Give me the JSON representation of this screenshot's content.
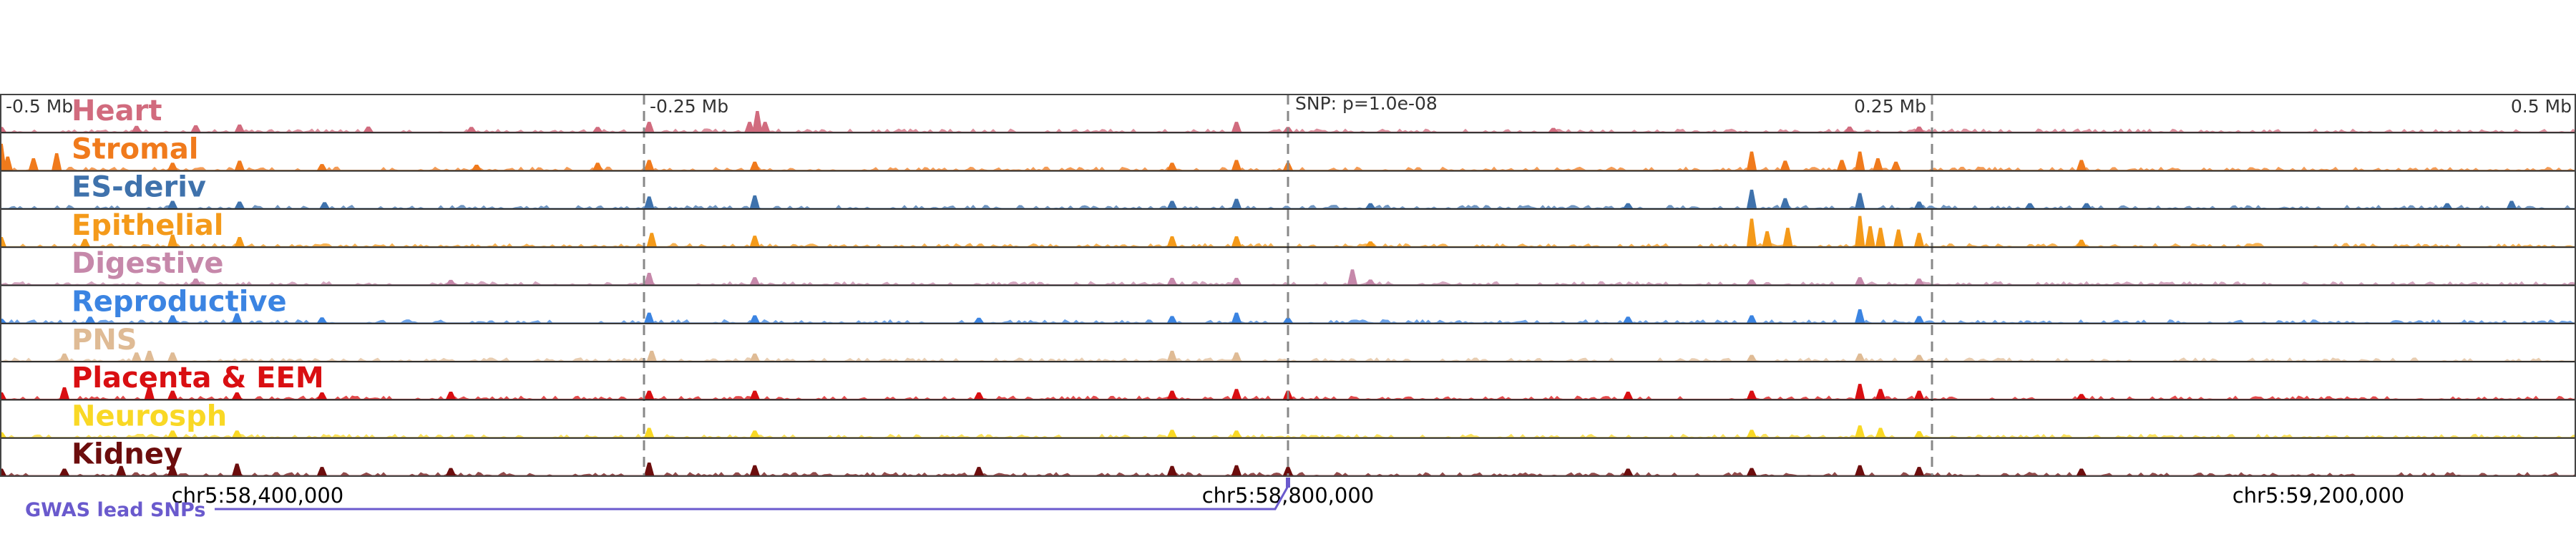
{
  "chart_data": {
    "type": "area",
    "title": "",
    "xlabel": "",
    "ylabel": "",
    "chromosome": "chr5",
    "xlim": [
      58300000,
      59300000
    ],
    "snp_position": 58800000,
    "snp_label": "SNP: p=1.0e-08",
    "scale_ticks": [
      {
        "pos": 58300000,
        "label": "-0.5 Mb"
      },
      {
        "pos": 58550000,
        "label": "-0.25 Mb"
      },
      {
        "pos": 58800000,
        "label": ""
      },
      {
        "pos": 59050000,
        "label": "0.25 Mb"
      },
      {
        "pos": 59300000,
        "label": "0.5 Mb"
      }
    ],
    "coordinate_ticks": [
      {
        "pos": 58400000,
        "label": "chr5:58,400,000"
      },
      {
        "pos": 58800000,
        "label": "chr5:58,800,000"
      },
      {
        "pos": 59200000,
        "label": "chr5:59,200,000"
      }
    ],
    "gwas_label": "GWAS lead SNPs",
    "gwas_color": "#6a5acd",
    "series": [
      {
        "name": "Heart",
        "color": "#d16b7e",
        "peaks": [
          {
            "x": 58300500,
            "h": 0.15
          },
          {
            "x": 58353000,
            "h": 0.18
          },
          {
            "x": 58376000,
            "h": 0.2
          },
          {
            "x": 58393000,
            "h": 0.22
          },
          {
            "x": 58443000,
            "h": 0.16
          },
          {
            "x": 58483000,
            "h": 0.15
          },
          {
            "x": 58532000,
            "h": 0.15
          },
          {
            "x": 58552000,
            "h": 0.3
          },
          {
            "x": 58591000,
            "h": 0.3
          },
          {
            "x": 58594000,
            "h": 0.62
          },
          {
            "x": 58597000,
            "h": 0.3
          },
          {
            "x": 58780000,
            "h": 0.3
          },
          {
            "x": 58800000,
            "h": 0.15
          },
          {
            "x": 58903000,
            "h": 0.12
          },
          {
            "x": 59018000,
            "h": 0.16
          },
          {
            "x": 59045000,
            "h": 0.16
          }
        ]
      },
      {
        "name": "Stromal",
        "color": "#f07a1c",
        "peaks": [
          {
            "x": 58300500,
            "h": 0.78
          },
          {
            "x": 58303000,
            "h": 0.4
          },
          {
            "x": 58313000,
            "h": 0.35
          },
          {
            "x": 58322000,
            "h": 0.5
          },
          {
            "x": 58367000,
            "h": 0.22
          },
          {
            "x": 58393000,
            "h": 0.28
          },
          {
            "x": 58425000,
            "h": 0.18
          },
          {
            "x": 58485000,
            "h": 0.16
          },
          {
            "x": 58532000,
            "h": 0.22
          },
          {
            "x": 58552000,
            "h": 0.3
          },
          {
            "x": 58593000,
            "h": 0.25
          },
          {
            "x": 58755000,
            "h": 0.22
          },
          {
            "x": 58780000,
            "h": 0.3
          },
          {
            "x": 58800000,
            "h": 0.22
          },
          {
            "x": 58980000,
            "h": 0.55
          },
          {
            "x": 58993000,
            "h": 0.28
          },
          {
            "x": 59015000,
            "h": 0.3
          },
          {
            "x": 59022000,
            "h": 0.55
          },
          {
            "x": 59029000,
            "h": 0.35
          },
          {
            "x": 59036000,
            "h": 0.25
          },
          {
            "x": 59108000,
            "h": 0.3
          }
        ]
      },
      {
        "name": "ES-deriv",
        "color": "#3f72ac",
        "peaks": [
          {
            "x": 58367000,
            "h": 0.22
          },
          {
            "x": 58393000,
            "h": 0.2
          },
          {
            "x": 58426000,
            "h": 0.18
          },
          {
            "x": 58552000,
            "h": 0.35
          },
          {
            "x": 58593000,
            "h": 0.38
          },
          {
            "x": 58755000,
            "h": 0.22
          },
          {
            "x": 58780000,
            "h": 0.28
          },
          {
            "x": 58832000,
            "h": 0.15
          },
          {
            "x": 58932000,
            "h": 0.15
          },
          {
            "x": 58980000,
            "h": 0.55
          },
          {
            "x": 58993000,
            "h": 0.3
          },
          {
            "x": 59022000,
            "h": 0.45
          },
          {
            "x": 59045000,
            "h": 0.2
          },
          {
            "x": 59088000,
            "h": 0.15
          },
          {
            "x": 59110000,
            "h": 0.15
          },
          {
            "x": 59250000,
            "h": 0.15
          },
          {
            "x": 59275000,
            "h": 0.22
          }
        ]
      },
      {
        "name": "Epithelial",
        "color": "#f49a1a",
        "peaks": [
          {
            "x": 58300500,
            "h": 0.28
          },
          {
            "x": 58333000,
            "h": 0.22
          },
          {
            "x": 58367000,
            "h": 0.35
          },
          {
            "x": 58393000,
            "h": 0.28
          },
          {
            "x": 58553000,
            "h": 0.4
          },
          {
            "x": 58593000,
            "h": 0.32
          },
          {
            "x": 58755000,
            "h": 0.3
          },
          {
            "x": 58780000,
            "h": 0.3
          },
          {
            "x": 58832000,
            "h": 0.15
          },
          {
            "x": 58980000,
            "h": 0.82
          },
          {
            "x": 58986000,
            "h": 0.45
          },
          {
            "x": 58994000,
            "h": 0.55
          },
          {
            "x": 59022000,
            "h": 0.9
          },
          {
            "x": 59026000,
            "h": 0.6
          },
          {
            "x": 59030000,
            "h": 0.55
          },
          {
            "x": 59037000,
            "h": 0.5
          },
          {
            "x": 59045000,
            "h": 0.4
          },
          {
            "x": 59108000,
            "h": 0.2
          }
        ]
      },
      {
        "name": "Digestive",
        "color": "#c688aa",
        "peaks": [
          {
            "x": 58376000,
            "h": 0.18
          },
          {
            "x": 58475000,
            "h": 0.14
          },
          {
            "x": 58552000,
            "h": 0.35
          },
          {
            "x": 58593000,
            "h": 0.22
          },
          {
            "x": 58755000,
            "h": 0.2
          },
          {
            "x": 58780000,
            "h": 0.2
          },
          {
            "x": 58825000,
            "h": 0.45
          },
          {
            "x": 58832000,
            "h": 0.15
          },
          {
            "x": 58980000,
            "h": 0.15
          },
          {
            "x": 59022000,
            "h": 0.22
          },
          {
            "x": 59045000,
            "h": 0.18
          }
        ]
      },
      {
        "name": "Reproductive",
        "color": "#3b84e2",
        "peaks": [
          {
            "x": 58300500,
            "h": 0.12
          },
          {
            "x": 58335000,
            "h": 0.18
          },
          {
            "x": 58367000,
            "h": 0.22
          },
          {
            "x": 58392000,
            "h": 0.28
          },
          {
            "x": 58425000,
            "h": 0.16
          },
          {
            "x": 58552000,
            "h": 0.3
          },
          {
            "x": 58593000,
            "h": 0.22
          },
          {
            "x": 58680000,
            "h": 0.15
          },
          {
            "x": 58755000,
            "h": 0.2
          },
          {
            "x": 58780000,
            "h": 0.3
          },
          {
            "x": 58800000,
            "h": 0.15
          },
          {
            "x": 58932000,
            "h": 0.18
          },
          {
            "x": 58980000,
            "h": 0.22
          },
          {
            "x": 59022000,
            "h": 0.4
          },
          {
            "x": 59045000,
            "h": 0.2
          }
        ]
      },
      {
        "name": "PNS",
        "color": "#dfbb95",
        "peaks": [
          {
            "x": 58325000,
            "h": 0.22
          },
          {
            "x": 58353000,
            "h": 0.25
          },
          {
            "x": 58358000,
            "h": 0.3
          },
          {
            "x": 58367000,
            "h": 0.25
          },
          {
            "x": 58553000,
            "h": 0.3
          },
          {
            "x": 58593000,
            "h": 0.22
          },
          {
            "x": 58755000,
            "h": 0.3
          },
          {
            "x": 58780000,
            "h": 0.25
          },
          {
            "x": 58980000,
            "h": 0.18
          },
          {
            "x": 59022000,
            "h": 0.22
          },
          {
            "x": 59045000,
            "h": 0.18
          }
        ]
      },
      {
        "name": "Placenta & EEM",
        "color": "#d90f12",
        "peaks": [
          {
            "x": 58300500,
            "h": 0.2
          },
          {
            "x": 58325000,
            "h": 0.35
          },
          {
            "x": 58358000,
            "h": 0.38
          },
          {
            "x": 58367000,
            "h": 0.25
          },
          {
            "x": 58392000,
            "h": 0.2
          },
          {
            "x": 58425000,
            "h": 0.2
          },
          {
            "x": 58475000,
            "h": 0.22
          },
          {
            "x": 58552000,
            "h": 0.25
          },
          {
            "x": 58593000,
            "h": 0.25
          },
          {
            "x": 58680000,
            "h": 0.2
          },
          {
            "x": 58755000,
            "h": 0.25
          },
          {
            "x": 58780000,
            "h": 0.3
          },
          {
            "x": 58800000,
            "h": 0.25
          },
          {
            "x": 58932000,
            "h": 0.22
          },
          {
            "x": 58980000,
            "h": 0.25
          },
          {
            "x": 59022000,
            "h": 0.45
          },
          {
            "x": 59030000,
            "h": 0.3
          },
          {
            "x": 59045000,
            "h": 0.25
          },
          {
            "x": 59108000,
            "h": 0.15
          }
        ]
      },
      {
        "name": "Neurosph",
        "color": "#f9d825",
        "peaks": [
          {
            "x": 58300500,
            "h": 0.15
          },
          {
            "x": 58367000,
            "h": 0.2
          },
          {
            "x": 58392000,
            "h": 0.2
          },
          {
            "x": 58552000,
            "h": 0.28
          },
          {
            "x": 58593000,
            "h": 0.2
          },
          {
            "x": 58755000,
            "h": 0.22
          },
          {
            "x": 58780000,
            "h": 0.2
          },
          {
            "x": 58980000,
            "h": 0.22
          },
          {
            "x": 59022000,
            "h": 0.35
          },
          {
            "x": 59030000,
            "h": 0.28
          },
          {
            "x": 59045000,
            "h": 0.18
          }
        ]
      },
      {
        "name": "Kidney",
        "color": "#6c0d0d",
        "peaks": [
          {
            "x": 58300500,
            "h": 0.2
          },
          {
            "x": 58325000,
            "h": 0.2
          },
          {
            "x": 58347000,
            "h": 0.28
          },
          {
            "x": 58367000,
            "h": 0.28
          },
          {
            "x": 58392000,
            "h": 0.35
          },
          {
            "x": 58425000,
            "h": 0.25
          },
          {
            "x": 58475000,
            "h": 0.22
          },
          {
            "x": 58552000,
            "h": 0.38
          },
          {
            "x": 58593000,
            "h": 0.3
          },
          {
            "x": 58680000,
            "h": 0.25
          },
          {
            "x": 58755000,
            "h": 0.28
          },
          {
            "x": 58780000,
            "h": 0.3
          },
          {
            "x": 58800000,
            "h": 0.25
          },
          {
            "x": 58932000,
            "h": 0.2
          },
          {
            "x": 58980000,
            "h": 0.22
          },
          {
            "x": 59022000,
            "h": 0.3
          },
          {
            "x": 59045000,
            "h": 0.25
          },
          {
            "x": 59108000,
            "h": 0.2
          }
        ]
      }
    ]
  }
}
